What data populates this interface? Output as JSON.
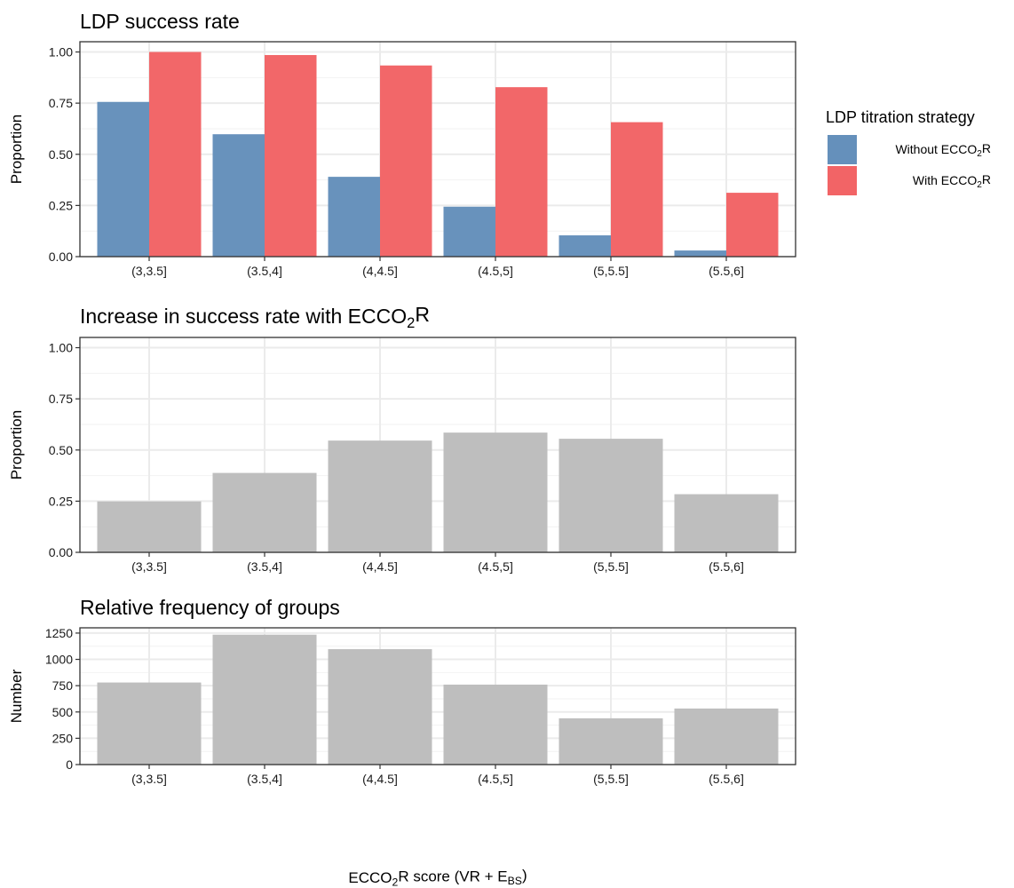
{
  "chart_data": [
    {
      "type": "bar",
      "title": "LDP success rate",
      "xlabel": "",
      "ylabel": "Proportion",
      "categories": [
        "(3,3.5]",
        "(3.5,4]",
        "(4,4.5]",
        "(4.5,5]",
        "(5,5.5]",
        "(5.5,6]"
      ],
      "series": [
        {
          "name": "Without ECCO₂R",
          "color": "#6590bb",
          "values": [
            0.756,
            0.598,
            0.39,
            0.244,
            0.104,
            0.03
          ]
        },
        {
          "name": "With ECCO₂R",
          "color": "#f26466",
          "values": [
            1.0,
            0.985,
            0.934,
            0.828,
            0.657,
            0.312
          ]
        }
      ],
      "ylim": [
        0,
        1.05
      ],
      "yticks": [
        0,
        0.25,
        0.5,
        0.75,
        1.0
      ],
      "yticklabels": [
        "0.00",
        "0.25",
        "0.50",
        "0.75",
        "1.00"
      ],
      "grid": true,
      "legend": "right"
    },
    {
      "type": "bar",
      "title": "Increase in success rate with ECCO₂R",
      "xlabel": "",
      "ylabel": "Proportion",
      "categories": [
        "(3,3.5]",
        "(3.5,4]",
        "(4,4.5]",
        "(4.5,5]",
        "(5,5.5]",
        "(5.5,6]"
      ],
      "series": [
        {
          "color": "#bebebe",
          "values": [
            0.249,
            0.388,
            0.546,
            0.585,
            0.555,
            0.284
          ]
        }
      ],
      "ylim": [
        0,
        1.05
      ],
      "yticks": [
        0,
        0.25,
        0.5,
        0.75,
        1.0
      ],
      "yticklabels": [
        "0.00",
        "0.25",
        "0.50",
        "0.75",
        "1.00"
      ],
      "grid": true
    },
    {
      "type": "bar",
      "title": "Relative frequency of groups",
      "xlabel": "ECCO₂R score (VR + E_BS)",
      "ylabel": "Number",
      "categories": [
        "(3,3.5]",
        "(3.5,4]",
        "(4,4.5]",
        "(4.5,5]",
        "(5,5.5]",
        "(5.5,6]"
      ],
      "series": [
        {
          "color": "#bebebe",
          "values": [
            780,
            1235,
            1097,
            760,
            440,
            533
          ]
        }
      ],
      "ylim": [
        0,
        1300
      ],
      "yticks": [
        0,
        250,
        500,
        750,
        1000,
        1250
      ],
      "yticklabels": [
        "0",
        "250",
        "500",
        "750",
        "1000",
        "1250"
      ],
      "grid": true
    }
  ],
  "legend": {
    "title": "LDP titration strategy",
    "items": [
      {
        "label": "Without ECCO₂R",
        "color": "#6590bb"
      },
      {
        "label": "With ECCO₂R",
        "color": "#f26466"
      }
    ]
  }
}
